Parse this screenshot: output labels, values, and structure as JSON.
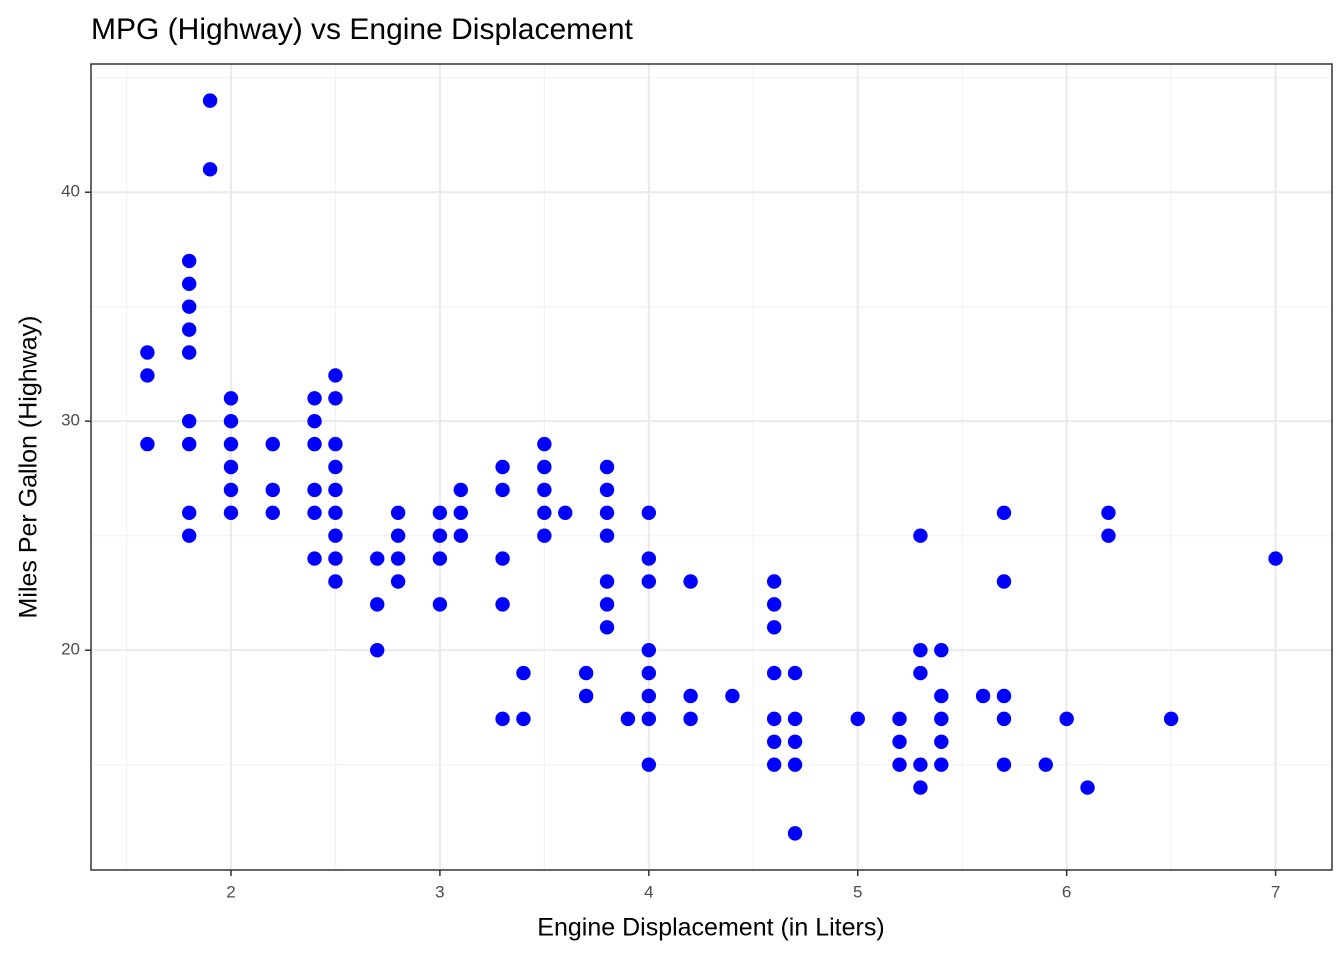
{
  "chart_data": {
    "type": "scatter",
    "title": "MPG (Highway) vs Engine Displacement",
    "x_label": "Engine Displacement (in Liters)",
    "y_label": "Miles Per Gallon (Highway)",
    "color": "#0000ff",
    "x": [
      1.6,
      1.6,
      1.6,
      1.8,
      1.8,
      1.8,
      1.8,
      1.8,
      1.8,
      1.8,
      1.8,
      1.8,
      1.9,
      1.9,
      2.0,
      2.0,
      2.0,
      2.0,
      2.0,
      2.0,
      2.2,
      2.2,
      2.2,
      2.4,
      2.4,
      2.4,
      2.4,
      2.4,
      2.4,
      2.5,
      2.5,
      2.5,
      2.5,
      2.5,
      2.5,
      2.5,
      2.5,
      2.5,
      2.7,
      2.7,
      2.7,
      2.8,
      2.8,
      2.8,
      2.8,
      3.0,
      3.0,
      3.0,
      3.0,
      3.1,
      3.1,
      3.1,
      3.3,
      3.3,
      3.3,
      3.3,
      3.3,
      3.4,
      3.4,
      3.5,
      3.5,
      3.5,
      3.5,
      3.5,
      3.6,
      3.7,
      3.7,
      3.8,
      3.8,
      3.8,
      3.8,
      3.8,
      3.8,
      3.8,
      3.9,
      4.0,
      4.0,
      4.0,
      4.0,
      4.0,
      4.0,
      4.0,
      4.0,
      4.2,
      4.2,
      4.2,
      4.4,
      4.6,
      4.6,
      4.6,
      4.6,
      4.6,
      4.6,
      4.6,
      4.7,
      4.7,
      4.7,
      4.7,
      4.7,
      5.0,
      5.2,
      5.2,
      5.2,
      5.3,
      5.3,
      5.3,
      5.3,
      5.3,
      5.4,
      5.4,
      5.4,
      5.4,
      5.4,
      5.6,
      5.7,
      5.7,
      5.7,
      5.7,
      5.7,
      5.9,
      6.0,
      6.1,
      6.2,
      6.2,
      6.5,
      7.0
    ],
    "values": [
      33,
      32,
      29,
      37,
      36,
      35,
      34,
      33,
      30,
      29,
      26,
      25,
      44,
      41,
      31,
      30,
      29,
      28,
      27,
      26,
      29,
      27,
      26,
      31,
      30,
      29,
      27,
      26,
      24,
      32,
      31,
      29,
      28,
      27,
      26,
      25,
      24,
      23,
      24,
      22,
      20,
      26,
      25,
      24,
      23,
      26,
      25,
      24,
      22,
      27,
      26,
      25,
      28,
      27,
      24,
      22,
      17,
      19,
      17,
      29,
      28,
      27,
      26,
      25,
      26,
      19,
      18,
      28,
      27,
      26,
      25,
      23,
      22,
      21,
      17,
      26,
      24,
      23,
      20,
      19,
      18,
      17,
      15,
      23,
      18,
      17,
      18,
      23,
      22,
      21,
      19,
      17,
      16,
      15,
      19,
      17,
      16,
      15,
      12,
      17,
      17,
      16,
      15,
      25,
      20,
      19,
      15,
      14,
      20,
      18,
      17,
      16,
      15,
      18,
      26,
      23,
      18,
      17,
      15,
      15,
      17,
      14,
      26,
      25,
      17,
      24
    ],
    "xlim": [
      1.33,
      7.27
    ],
    "ylim": [
      10.4,
      45.6
    ],
    "xticks": [
      2,
      3,
      4,
      5,
      6,
      7
    ],
    "yticks": [
      20,
      30,
      40
    ],
    "grid": true
  }
}
